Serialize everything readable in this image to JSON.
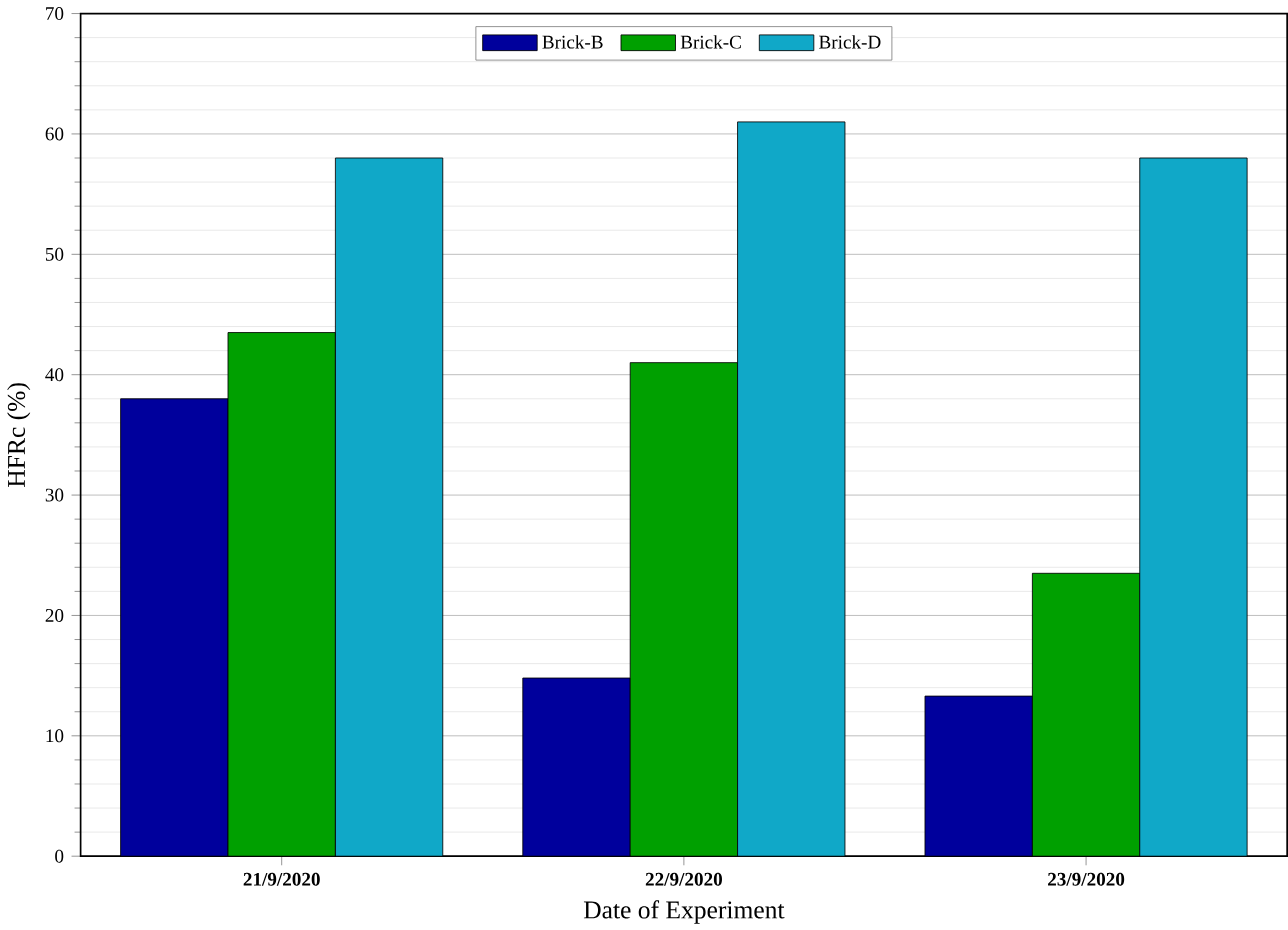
{
  "chart_data": {
    "type": "bar",
    "xlabel": "Date of Experiment",
    "ylabel": "HFRc (%)",
    "categories": [
      "21/9/2020",
      "22/9/2020",
      "23/9/2020"
    ],
    "series": [
      {
        "name": "Brick-B",
        "color": "#00009c",
        "values": [
          38,
          14.8,
          13.3
        ]
      },
      {
        "name": "Brick-C",
        "color": "#00a000",
        "values": [
          43.5,
          41,
          23.5
        ]
      },
      {
        "name": "Brick-D",
        "color": "#10a8c8",
        "values": [
          58,
          61,
          58
        ]
      }
    ],
    "ylim": [
      0,
      70
    ],
    "yticks": [
      0,
      10,
      20,
      30,
      40,
      50,
      60,
      70
    ],
    "grid": "y",
    "legend": "top"
  }
}
